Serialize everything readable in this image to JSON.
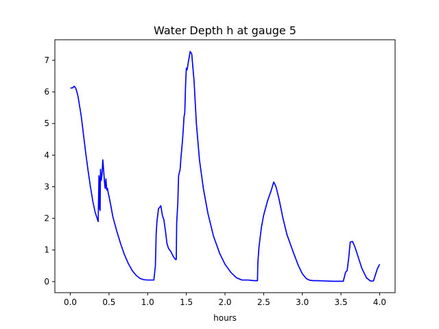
{
  "chart_data": {
    "type": "line",
    "title": "Water Depth h at gauge 5",
    "xlabel": "hours",
    "ylabel": "",
    "xlim": [
      -0.2,
      4.2
    ],
    "ylim": [
      -0.35,
      7.65
    ],
    "xticks": [
      0.0,
      0.5,
      1.0,
      1.5,
      2.0,
      2.5,
      3.0,
      3.5,
      4.0
    ],
    "xtick_labels": [
      "0.0",
      "0.5",
      "1.0",
      "1.5",
      "2.0",
      "2.5",
      "3.0",
      "3.5",
      "4.0"
    ],
    "yticks": [
      0,
      1,
      2,
      3,
      4,
      5,
      6,
      7
    ],
    "ytick_labels": [
      "0",
      "1",
      "2",
      "3",
      "4",
      "5",
      "6",
      "7"
    ],
    "grid": false,
    "series": [
      {
        "color": "#0000ff",
        "x": [
          0.0,
          0.03,
          0.05,
          0.07,
          0.09,
          0.1,
          0.12,
          0.14,
          0.17,
          0.2,
          0.23,
          0.26,
          0.29,
          0.32,
          0.36,
          0.37,
          0.375,
          0.38,
          0.385,
          0.39,
          0.4,
          0.41,
          0.42,
          0.43,
          0.44,
          0.45,
          0.46,
          0.47,
          0.48,
          0.49,
          0.5,
          0.52,
          0.55,
          0.6,
          0.65,
          0.7,
          0.75,
          0.8,
          0.85,
          0.9,
          0.95,
          1.0,
          1.05,
          1.08,
          1.1,
          1.11,
          1.12,
          1.14,
          1.17,
          1.19,
          1.21,
          1.23,
          1.25,
          1.27,
          1.3,
          1.33,
          1.36,
          1.37,
          1.375,
          1.38,
          1.39,
          1.4,
          1.42,
          1.43,
          1.45,
          1.46,
          1.47,
          1.48,
          1.49,
          1.5,
          1.51,
          1.52,
          1.53,
          1.55,
          1.57,
          1.6,
          1.63,
          1.67,
          1.72,
          1.78,
          1.85,
          1.93,
          2.0,
          2.08,
          2.15,
          2.22,
          2.3,
          2.38,
          2.42,
          2.425,
          2.44,
          2.47,
          2.5,
          2.55,
          2.6,
          2.63,
          2.66,
          2.7,
          2.75,
          2.8,
          2.88,
          2.95,
          3.0,
          3.05,
          3.08,
          3.1,
          3.15,
          3.2,
          3.3,
          3.4,
          3.5,
          3.53,
          3.56,
          3.58,
          3.6,
          3.62,
          3.65,
          3.68,
          3.72,
          3.77,
          3.83,
          3.88,
          3.92,
          3.95,
          3.97,
          4.0
        ],
        "y": [
          6.12,
          6.13,
          6.18,
          6.12,
          5.95,
          5.85,
          5.55,
          5.25,
          4.65,
          4.05,
          3.5,
          3.0,
          2.55,
          2.2,
          1.9,
          3.35,
          2.3,
          3.3,
          2.25,
          3.55,
          3.2,
          3.4,
          3.85,
          3.55,
          3.2,
          2.95,
          3.25,
          2.9,
          2.95,
          2.8,
          2.7,
          2.45,
          2.05,
          1.6,
          1.2,
          0.85,
          0.57,
          0.35,
          0.2,
          0.1,
          0.06,
          0.05,
          0.05,
          0.05,
          0.5,
          1.5,
          1.9,
          2.3,
          2.4,
          2.1,
          1.95,
          1.6,
          1.2,
          1.05,
          0.95,
          0.8,
          0.7,
          0.7,
          1.85,
          2.05,
          2.5,
          3.35,
          3.55,
          3.9,
          4.45,
          4.8,
          5.2,
          5.35,
          6.2,
          6.75,
          6.7,
          6.85,
          7.0,
          7.28,
          7.2,
          6.35,
          5.0,
          3.85,
          2.95,
          2.15,
          1.45,
          0.9,
          0.55,
          0.28,
          0.12,
          0.05,
          0.05,
          0.03,
          0.03,
          0.6,
          1.1,
          1.7,
          2.1,
          2.55,
          2.9,
          3.15,
          3.0,
          2.6,
          2.0,
          1.5,
          0.95,
          0.5,
          0.25,
          0.1,
          0.06,
          0.04,
          0.03,
          0.03,
          0.02,
          0.01,
          0.01,
          0.01,
          0.3,
          0.35,
          0.75,
          1.25,
          1.27,
          1.1,
          0.8,
          0.42,
          0.12,
          0.02,
          0.02,
          0.25,
          0.4,
          0.55
        ]
      }
    ]
  }
}
